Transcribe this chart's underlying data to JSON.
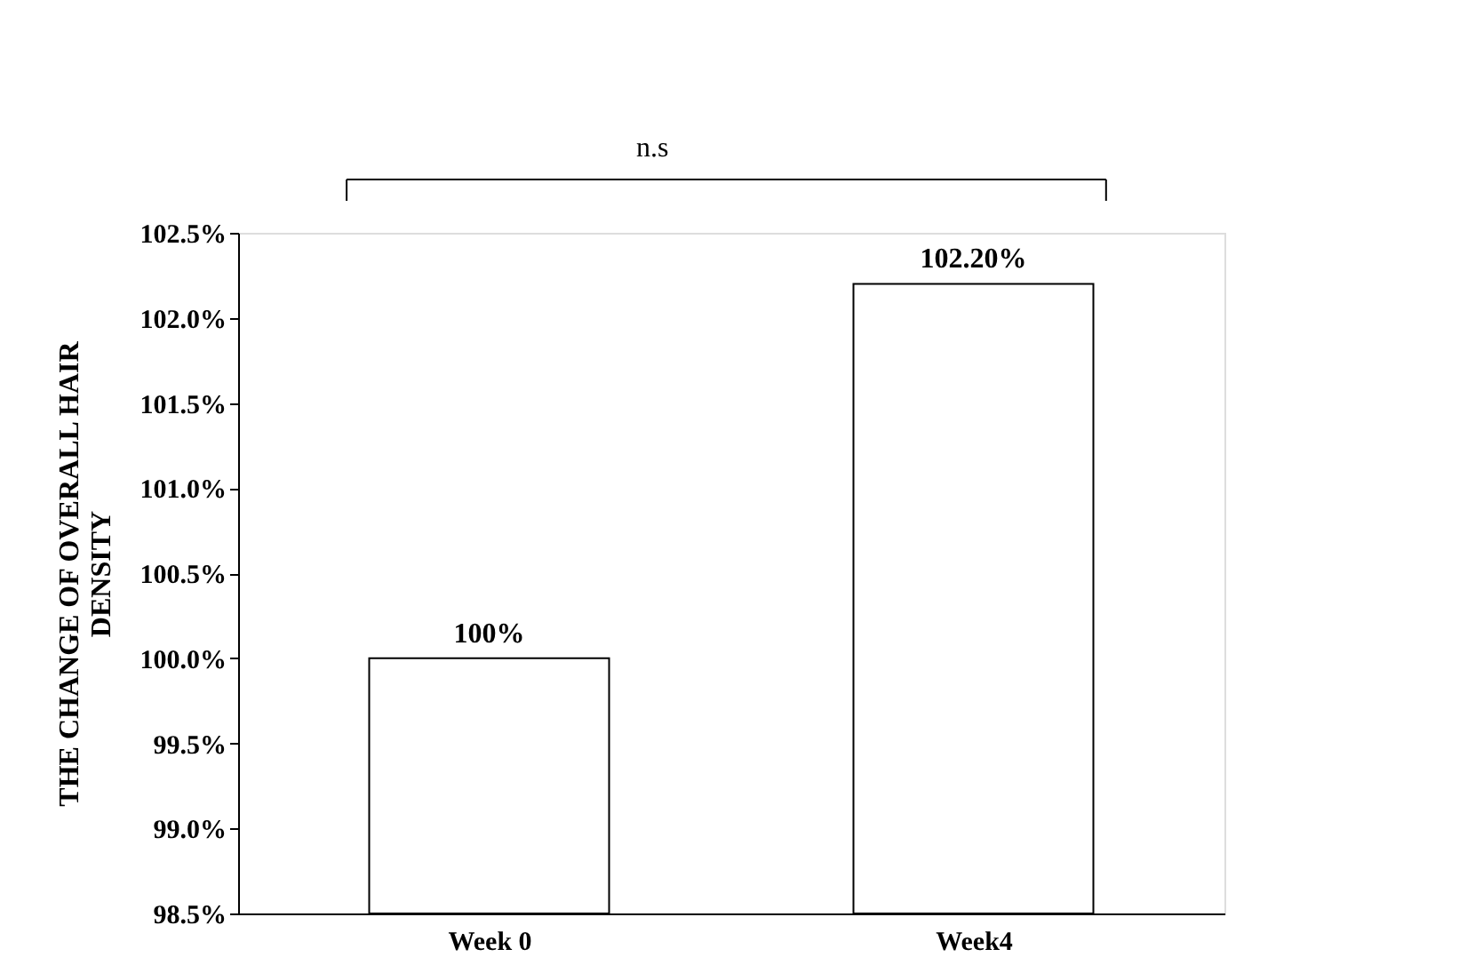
{
  "chart_data": {
    "type": "bar",
    "categories": [
      "Week 0",
      "Week4"
    ],
    "values": [
      100.0,
      102.2
    ],
    "value_labels": [
      "100%",
      "102.20%"
    ],
    "color": "#ffffff",
    "ylabel": "THE CHANGE OF OVERALL HAIR DENSITY",
    "ylim": [
      98.5,
      102.5
    ],
    "yticks": [
      {
        "value": 98.5,
        "label": "98.5%"
      },
      {
        "value": 99.0,
        "label": "99.0%"
      },
      {
        "value": 99.5,
        "label": "99.5%"
      },
      {
        "value": 100.0,
        "label": "100.0%"
      },
      {
        "value": 100.5,
        "label": "100.5%"
      },
      {
        "value": 101.0,
        "label": "101.0%"
      },
      {
        "value": 101.5,
        "label": "101.5%"
      },
      {
        "value": 102.0,
        "label": "102.0%"
      },
      {
        "value": 102.5,
        "label": "102.5%"
      }
    ],
    "annotations": [
      "n.s"
    ],
    "grid": false
  }
}
